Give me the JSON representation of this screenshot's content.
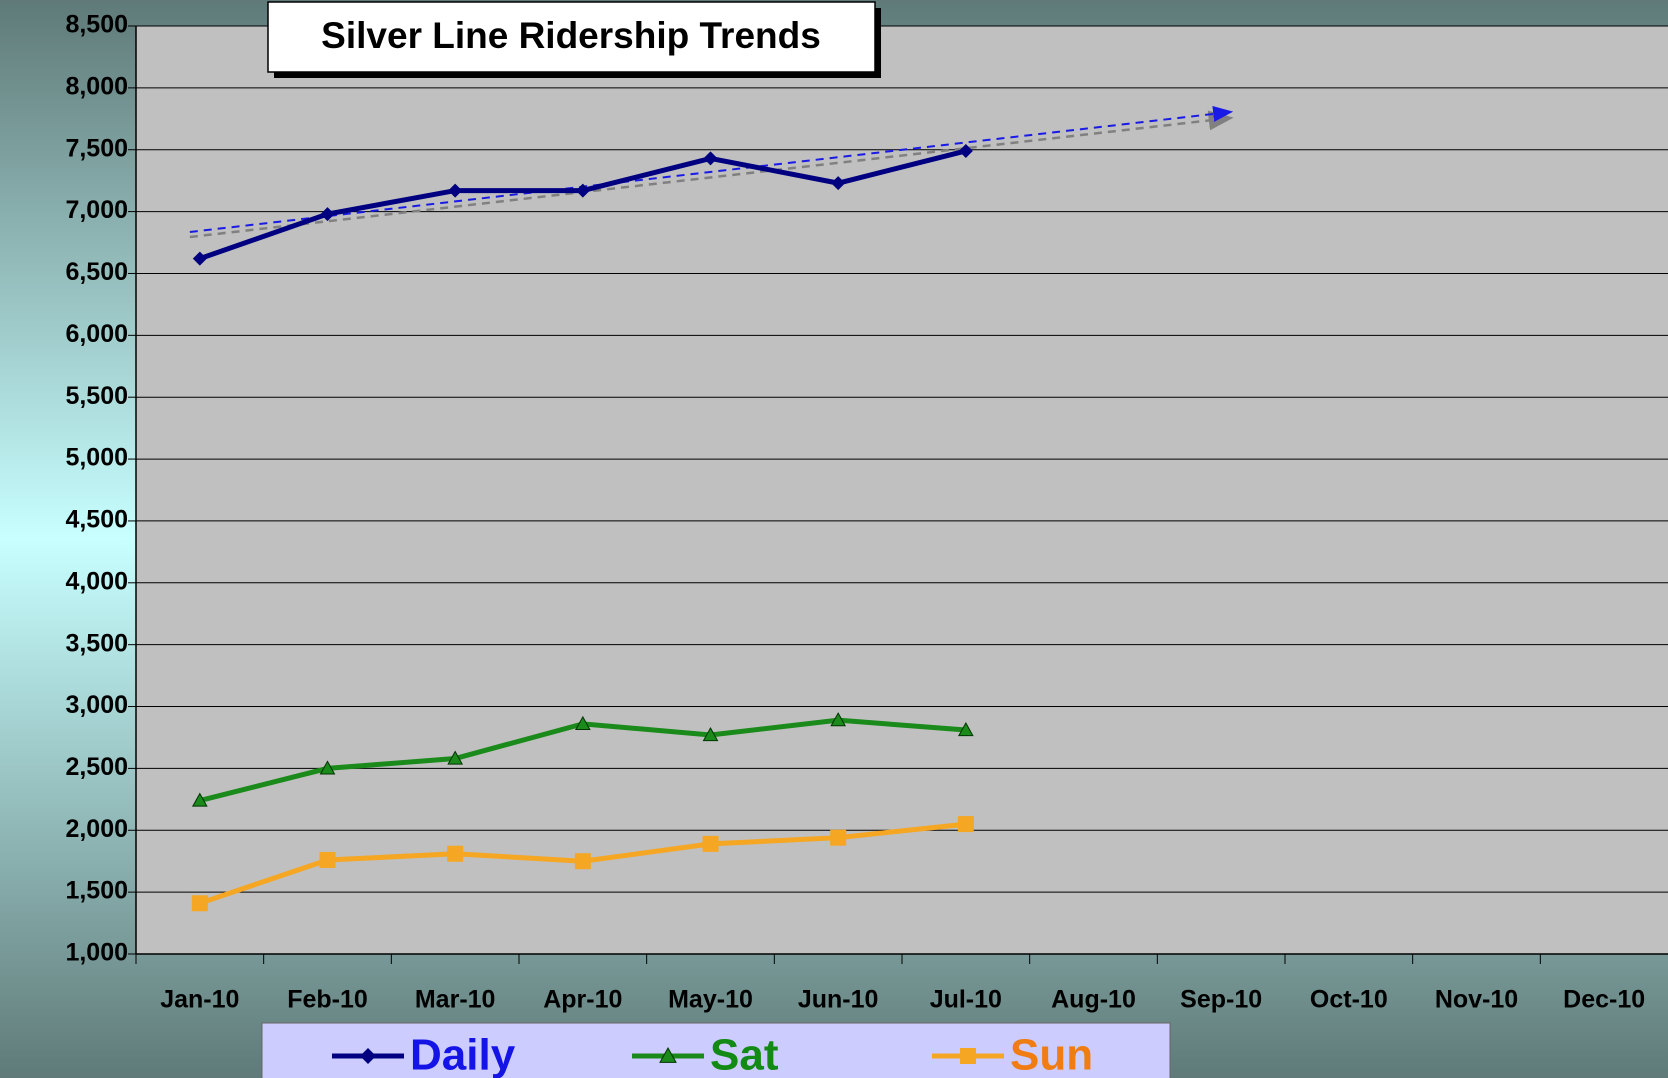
{
  "chart_data": {
    "type": "line",
    "title": "Silver Line Ridership Trends",
    "categories": [
      "Jan-10",
      "Feb-10",
      "Mar-10",
      "Apr-10",
      "May-10",
      "Jun-10",
      "Jul-10",
      "Aug-10",
      "Sep-10",
      "Oct-10",
      "Nov-10",
      "Dec-10"
    ],
    "series": [
      {
        "name": "Daily",
        "color": "#000080",
        "legend_color": "#1414e6",
        "marker": "diamond",
        "values": [
          6620,
          6980,
          7170,
          7170,
          7430,
          7230,
          7490,
          null,
          null,
          null,
          null,
          null
        ]
      },
      {
        "name": "Sat",
        "color": "#1a8a1a",
        "legend_color": "#138a13",
        "marker": "triangle",
        "values": [
          2240,
          2500,
          2580,
          2860,
          2770,
          2890,
          2810,
          null,
          null,
          null,
          null,
          null
        ]
      },
      {
        "name": "Sun",
        "color": "#f5a623",
        "legend_color": "#f07c12",
        "marker": "square",
        "values": [
          1410,
          1760,
          1810,
          1750,
          1890,
          1940,
          2050,
          null,
          null,
          null,
          null,
          null
        ]
      }
    ],
    "ylim": [
      1000,
      8500
    ],
    "yticks": [
      {
        "value": 1000,
        "label": "1,000"
      },
      {
        "value": 1500,
        "label": "1,500"
      },
      {
        "value": 2000,
        "label": "2,000"
      },
      {
        "value": 2500,
        "label": "2,500"
      },
      {
        "value": 3000,
        "label": "3,000"
      },
      {
        "value": 3500,
        "label": "3,500"
      },
      {
        "value": 4000,
        "label": "4,000"
      },
      {
        "value": 4500,
        "label": "4,500"
      },
      {
        "value": 5000,
        "label": "5,000"
      },
      {
        "value": 5500,
        "label": "5,500"
      },
      {
        "value": 6000,
        "label": "6,000"
      },
      {
        "value": 6500,
        "label": "6,500"
      },
      {
        "value": 7000,
        "label": "7,000"
      },
      {
        "value": 7500,
        "label": "7,500"
      },
      {
        "value": 8000,
        "label": "8,000"
      },
      {
        "value": 8500,
        "label": "8,500"
      }
    ],
    "grid": true,
    "legend": "bottom"
  }
}
